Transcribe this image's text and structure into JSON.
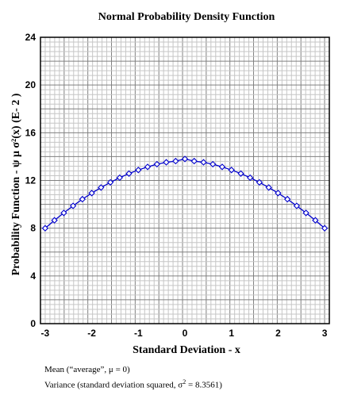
{
  "chart_data": {
    "type": "line",
    "title": "Normal Probability Density Function",
    "xlabel": "Standard Deviation - x",
    "ylabel": "Probability Function - ψ μ σ²(x)  (E- 2 )",
    "xlim": [
      -3.1,
      3.1
    ],
    "ylim": [
      0,
      24
    ],
    "x_ticks": [
      -3,
      -2,
      -1,
      0,
      1,
      2,
      3
    ],
    "y_ticks": [
      0,
      4,
      8,
      12,
      16,
      20,
      24
    ],
    "grid": true,
    "series": [
      {
        "color": "#0000cc",
        "marker": "diamond",
        "x": [
          -3.0,
          -2.8,
          -2.6,
          -2.4,
          -2.2,
          -2.0,
          -1.8,
          -1.6,
          -1.4,
          -1.2,
          -1.0,
          -0.8,
          -0.6,
          -0.4,
          -0.2,
          0.0,
          0.2,
          0.4,
          0.6,
          0.8,
          1.0,
          1.2,
          1.4,
          1.6,
          1.8,
          2.0,
          2.2,
          2.4,
          2.6,
          2.8,
          3.0
        ],
        "y": [
          8.0,
          8.66,
          9.28,
          9.87,
          10.43,
          10.94,
          11.41,
          11.84,
          12.23,
          12.58,
          12.88,
          13.14,
          13.36,
          13.52,
          13.62,
          13.8,
          13.62,
          13.52,
          13.36,
          13.14,
          12.88,
          12.58,
          12.23,
          11.84,
          11.41,
          10.94,
          10.43,
          9.87,
          9.28,
          8.66,
          8.0
        ]
      }
    ]
  },
  "notes": {
    "mean": "Mean (“average”,  μ = 0)",
    "variance_prefix": "Variance (standard deviation squared, σ",
    "variance_sup": "2",
    "variance_suffix": " = 8.3561)"
  }
}
